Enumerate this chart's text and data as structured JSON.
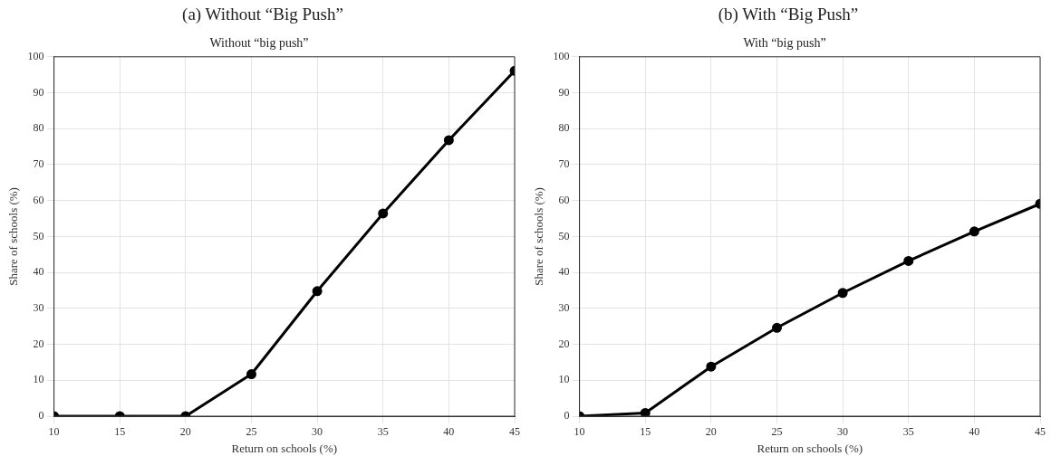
{
  "chart_data": [
    {
      "type": "line",
      "title": "(a) Without “Big Push”",
      "subtitle": "Without “big push”",
      "xlabel": "Return on schools (%)",
      "ylabel": "Share of schools (%)",
      "x": [
        10,
        15,
        20,
        25,
        30,
        35,
        40,
        45
      ],
      "series": [
        {
          "color": "#000000",
          "values": [
            0,
            0,
            0,
            11.7,
            34.8,
            56.4,
            76.8,
            96.1
          ]
        }
      ],
      "xlim": [
        10,
        45
      ],
      "xticks": [
        10,
        15,
        20,
        25,
        30,
        35,
        40,
        45
      ],
      "ylim": [
        0,
        100
      ],
      "yticks": [
        0,
        10,
        20,
        30,
        40,
        50,
        60,
        70,
        80,
        90,
        100
      ],
      "grid": true,
      "marker": "circle",
      "line_style": "solid"
    },
    {
      "type": "line",
      "title": "(b) With “Big Push”",
      "subtitle": "With “big push”",
      "xlabel": "Return on schools (%)",
      "ylabel": "Share of schools (%)",
      "x": [
        10,
        15,
        20,
        25,
        30,
        35,
        40,
        45
      ],
      "series": [
        {
          "color": "#000000",
          "values": [
            0,
            0.9,
            13.8,
            24.6,
            34.3,
            43.2,
            51.4,
            59.1
          ]
        }
      ],
      "xlim": [
        10,
        45
      ],
      "xticks": [
        10,
        15,
        20,
        25,
        30,
        35,
        40,
        45
      ],
      "ylim": [
        0,
        100
      ],
      "yticks": [
        0,
        10,
        20,
        30,
        40,
        50,
        60,
        70,
        80,
        90,
        100
      ],
      "grid": true,
      "marker": "circle",
      "line_style": "solid"
    }
  ]
}
